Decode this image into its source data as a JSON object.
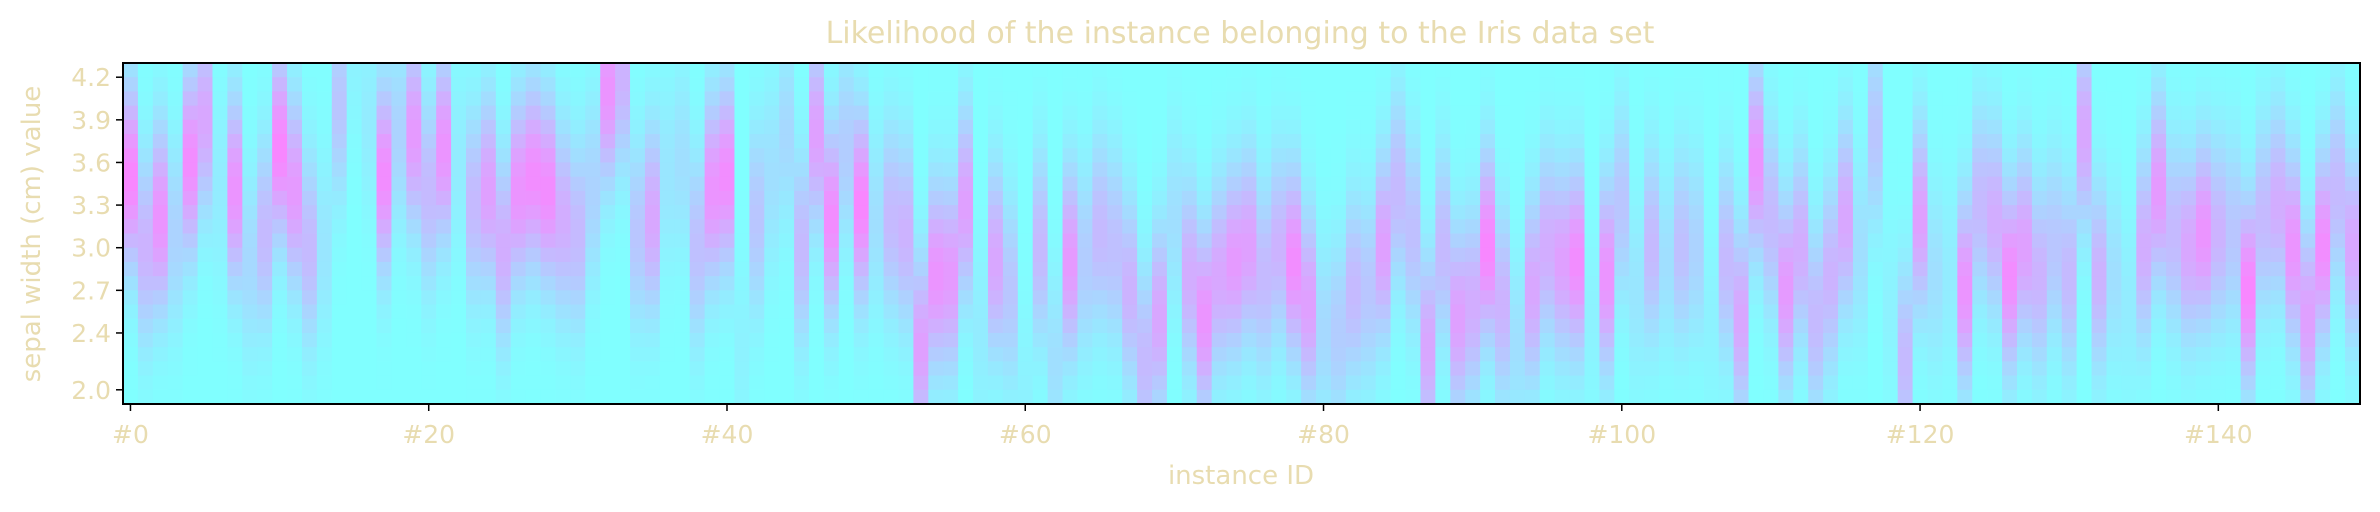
{
  "chart_data": {
    "type": "heatmap",
    "title": "Likelihood of the instance belonging to the Iris data set",
    "xlabel": "instance ID",
    "ylabel": "sepal width (cm) value",
    "x_ticks": [
      {
        "value": 0,
        "label": "#0"
      },
      {
        "value": 20,
        "label": "#20"
      },
      {
        "value": 40,
        "label": "#40"
      },
      {
        "value": 60,
        "label": "#60"
      },
      {
        "value": 80,
        "label": "#80"
      },
      {
        "value": 100,
        "label": "#100"
      },
      {
        "value": 120,
        "label": "#120"
      },
      {
        "value": 140,
        "label": "#140"
      }
    ],
    "y_ticks": [
      {
        "value": 2.0,
        "label": "2.0"
      },
      {
        "value": 2.4,
        "label": "2.4"
      },
      {
        "value": 2.7,
        "label": "2.7"
      },
      {
        "value": 3.0,
        "label": "3.0"
      },
      {
        "value": 3.3,
        "label": "3.3"
      },
      {
        "value": 3.6,
        "label": "3.6"
      },
      {
        "value": 3.9,
        "label": "3.9"
      },
      {
        "value": 4.2,
        "label": "4.2"
      }
    ],
    "xlim": [
      -0.5,
      149.5
    ],
    "ylim": [
      1.9,
      4.3
    ],
    "instances": 150,
    "y_bins": 24,
    "low_color": "#80ffff",
    "high_color": "#ff80ff",
    "text_color": "#e8dcb0",
    "peak_sepal_width": [
      3.5,
      3.0,
      3.2,
      3.1,
      3.6,
      3.9,
      3.4,
      3.4,
      2.9,
      3.1,
      3.7,
      3.4,
      3.0,
      3.0,
      4.0,
      4.4,
      3.9,
      3.5,
      3.8,
      3.8,
      3.4,
      3.7,
      3.6,
      3.3,
      3.4,
      3.0,
      3.4,
      3.5,
      3.4,
      3.2,
      3.1,
      3.4,
      4.1,
      4.2,
      3.1,
      3.2,
      3.5,
      3.6,
      3.0,
      3.4,
      3.5,
      2.3,
      3.2,
      3.5,
      3.8,
      3.0,
      3.8,
      3.2,
      3.7,
      3.3,
      3.2,
      3.2,
      3.1,
      2.3,
      2.8,
      2.8,
      3.3,
      2.4,
      2.9,
      2.7,
      2.0,
      3.0,
      2.2,
      2.9,
      2.9,
      3.1,
      3.0,
      2.7,
      2.2,
      2.5,
      3.2,
      2.8,
      2.5,
      2.8,
      2.9,
      3.0,
      2.8,
      3.0,
      2.9,
      2.6,
      2.4,
      2.4,
      2.7,
      2.7,
      3.0,
      3.4,
      3.1,
      2.3,
      3.0,
      2.5,
      2.6,
      3.0,
      2.6,
      2.3,
      2.7,
      3.0,
      2.9,
      2.9,
      2.5,
      2.8,
      3.3,
      2.7,
      3.0,
      2.9,
      3.0,
      3.0,
      2.5,
      2.9,
      2.5,
      3.6,
      3.2,
      2.7,
      3.0,
      2.5,
      2.8,
      3.2,
      3.0,
      3.8,
      2.6,
      2.2,
      3.2,
      2.8,
      2.8,
      2.7,
      3.3,
      3.2,
      2.8,
      3.0,
      2.8,
      3.0,
      2.8,
      3.8,
      2.8,
      2.8,
      2.6,
      3.0,
      3.4,
      3.1,
      3.0,
      3.1,
      3.1,
      3.1,
      2.7,
      3.2,
      3.3,
      3.0,
      2.5,
      3.0,
      3.4,
      3.0
    ],
    "likelihood_strength": [
      0.95,
      0.6,
      0.85,
      0.35,
      0.9,
      0.7,
      0.15,
      0.85,
      0.3,
      0.55,
      0.95,
      0.8,
      0.55,
      0.2,
      0.45,
      0.1,
      0.15,
      0.9,
      0.35,
      0.8,
      0.55,
      0.85,
      0.15,
      0.55,
      0.75,
      0.65,
      0.85,
      0.9,
      0.9,
      0.65,
      0.55,
      0.35,
      0.85,
      0.6,
      0.45,
      0.7,
      0.2,
      0.25,
      0.5,
      0.85,
      0.9,
      0.1,
      0.45,
      0.25,
      0.3,
      0.55,
      0.75,
      0.9,
      0.4,
      0.95,
      0.25,
      0.55,
      0.6,
      0.75,
      0.85,
      0.8,
      0.75,
      0.15,
      0.7,
      0.45,
      0.1,
      0.55,
      0.25,
      0.8,
      0.4,
      0.55,
      0.5,
      0.6,
      0.55,
      0.7,
      0.25,
      0.65,
      0.85,
      0.7,
      0.8,
      0.75,
      0.55,
      0.6,
      0.9,
      0.75,
      0.3,
      0.4,
      0.55,
      0.45,
      0.75,
      0.55,
      0.5,
      0.7,
      0.55,
      0.75,
      0.65,
      0.95,
      0.6,
      0.25,
      0.7,
      0.65,
      0.75,
      0.9,
      0.1,
      0.85,
      0.45,
      0.2,
      0.55,
      0.25,
      0.5,
      0.35,
      0.1,
      0.55,
      0.7,
      0.85,
      0.55,
      0.8,
      0.65,
      0.55,
      0.6,
      0.7,
      0.25,
      0.45,
      0.1,
      0.55,
      0.75,
      0.25,
      0.15,
      0.85,
      0.55,
      0.65,
      0.9,
      0.75,
      0.6,
      0.45,
      0.55,
      0.7,
      0.6,
      0.25,
      0.15,
      0.65,
      0.8,
      0.55,
      0.7,
      0.85,
      0.6,
      0.45,
      0.95,
      0.55,
      0.65,
      0.85,
      0.75,
      0.9,
      0.55,
      0.7
    ]
  }
}
